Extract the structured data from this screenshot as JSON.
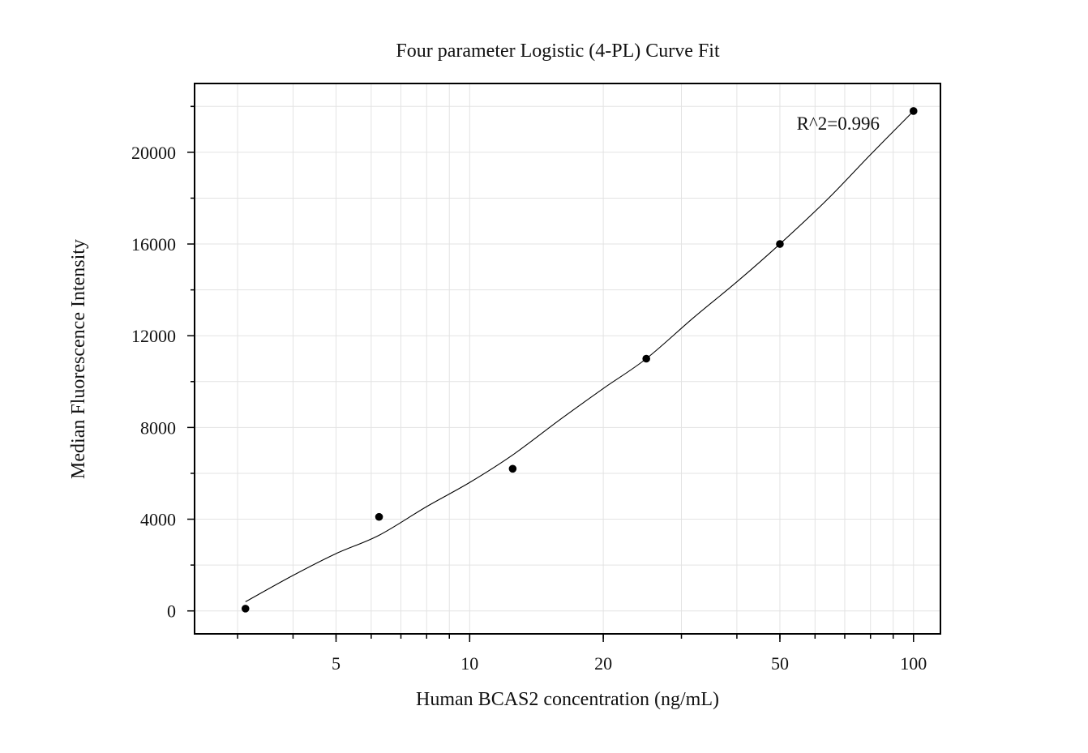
{
  "chart_data": {
    "type": "scatter",
    "title": "Four parameter Logistic (4-PL) Curve Fit",
    "xlabel": "Human BCAS2 concentration (ng/mL)",
    "ylabel": "Median Fluorescence Intensity",
    "xscale": "log",
    "xlim": [
      2.4,
      115
    ],
    "ylim": [
      -1000,
      23000
    ],
    "xticks": [
      {
        "value": 5,
        "label": "5"
      },
      {
        "value": 10,
        "label": "10"
      },
      {
        "value": 20,
        "label": "20"
      },
      {
        "value": 50,
        "label": "50"
      },
      {
        "value": 100,
        "label": "100"
      }
    ],
    "yticks": [
      {
        "value": 0,
        "label": "0"
      },
      {
        "value": 4000,
        "label": "4000"
      },
      {
        "value": 8000,
        "label": "8000"
      },
      {
        "value": 12000,
        "label": "12000"
      },
      {
        "value": 16000,
        "label": "16000"
      },
      {
        "value": 20000,
        "label": "20000"
      }
    ],
    "grid": true,
    "series": [
      {
        "points": [
          {
            "x": 3.125,
            "y": 100
          },
          {
            "x": 6.25,
            "y": 4100
          },
          {
            "x": 12.5,
            "y": 6200
          },
          {
            "x": 25,
            "y": 11000
          },
          {
            "x": 50,
            "y": 16000
          },
          {
            "x": 100,
            "y": 21800
          }
        ]
      }
    ],
    "fit_curve": {
      "model": "4-PL",
      "x": [
        3.125,
        4,
        5,
        6.25,
        8,
        10,
        12.5,
        16,
        20,
        25,
        32,
        40,
        50,
        64,
        80,
        100
      ],
      "y": [
        400,
        1550,
        2500,
        3300,
        4550,
        5600,
        6800,
        8350,
        9700,
        11000,
        12800,
        14350,
        16000,
        17950,
        19900,
        21800
      ]
    },
    "annotations": [
      {
        "text": "R^2=0.996"
      }
    ],
    "colors": {
      "marker": "#000000",
      "curve": "#000000",
      "grid": "#e3e3e3",
      "frame": "#000000"
    }
  }
}
